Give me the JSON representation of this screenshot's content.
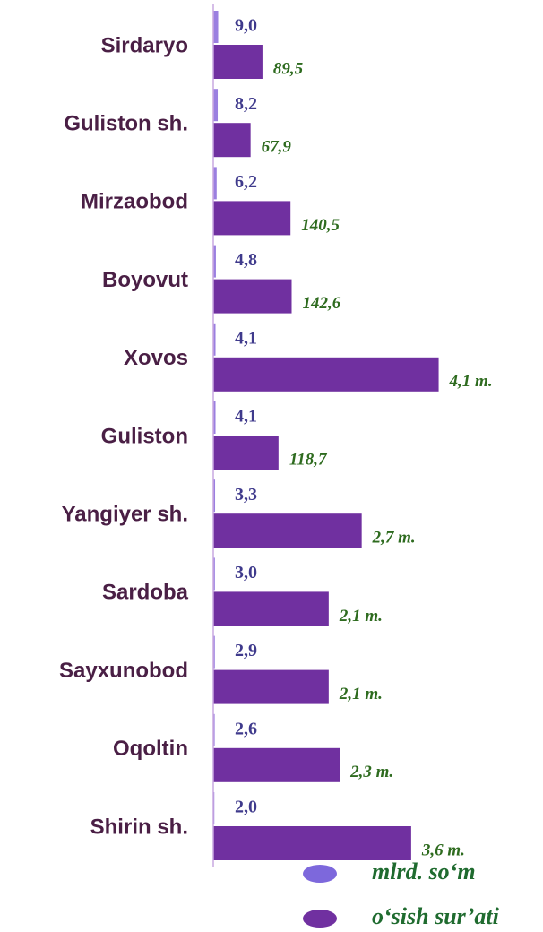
{
  "chart_data": {
    "type": "bar",
    "orientation": "horizontal",
    "categories": [
      "Sirdaryo",
      "Guliston sh.",
      "Mirzaobod",
      "Boyovut",
      "Xovos",
      "Guliston",
      "Yangiyer sh.",
      "Sardoba",
      "Sayxunobod",
      "Oqoltin",
      "Shirin sh."
    ],
    "series": [
      {
        "name": "mlrd. so‘m",
        "color": "#9b7fe0",
        "legend_color": "#7d68dc",
        "values": [
          9.0,
          8.2,
          6.2,
          4.8,
          4.1,
          4.1,
          3.3,
          3.0,
          2.9,
          2.6,
          2.0
        ],
        "value_labels": [
          "9,0",
          "8,2",
          "6,2",
          "4,8",
          "4,1",
          "4,1",
          "3,3",
          "3,0",
          "2,9",
          "2,6",
          "2,0"
        ]
      },
      {
        "name": "o‘sish sur’ati",
        "color": "#7030a0",
        "legend_color": "#7030a0",
        "values": [
          89.5,
          67.9,
          140.5,
          142.6,
          410,
          118.7,
          270,
          210,
          210,
          230,
          360
        ],
        "value_labels": [
          "89,5",
          "67,9",
          "140,5",
          "142,6",
          "4,1 m.",
          "118,7",
          "2,7 m.",
          "2,1 m.",
          "2,1 m.",
          "2,3 m.",
          "3,6 m."
        ]
      }
    ],
    "xlim": [
      0,
      590
    ]
  }
}
